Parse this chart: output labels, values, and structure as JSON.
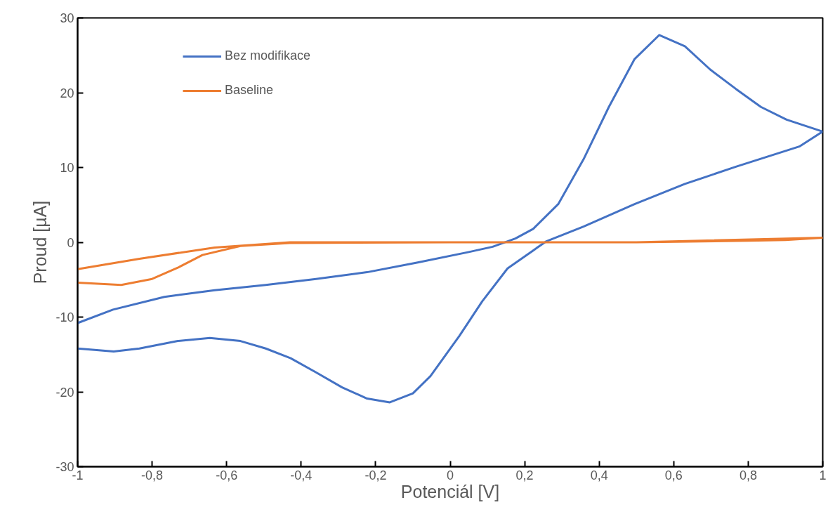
{
  "chart_data": {
    "type": "line",
    "xlabel": "Potenciál [V]",
    "ylabel": "Proud [µA]",
    "xlim": [
      -1,
      1
    ],
    "ylim": [
      -30,
      30
    ],
    "xticks": [
      {
        "value": -1,
        "label": "-1"
      },
      {
        "value": -0.8,
        "label": "-0,8"
      },
      {
        "value": -0.6,
        "label": "-0,6"
      },
      {
        "value": -0.4,
        "label": "-0,4"
      },
      {
        "value": -0.2,
        "label": "-0,2"
      },
      {
        "value": 0,
        "label": "0"
      },
      {
        "value": 0.2,
        "label": "0,2"
      },
      {
        "value": 0.4,
        "label": "0,4"
      },
      {
        "value": 0.6,
        "label": "0,6"
      },
      {
        "value": 0.8,
        "label": "0,8"
      },
      {
        "value": 1,
        "label": "1"
      }
    ],
    "yticks": [
      -30,
      -20,
      -10,
      0,
      10,
      20,
      30
    ],
    "grid": false,
    "legend": "top left",
    "line_style": "solid",
    "marker": "none",
    "series": [
      {
        "name": "Bez modifikace",
        "color": "#4472c4",
        "x": [
          -1,
          -0.905,
          -0.767,
          -0.632,
          -0.495,
          -0.36,
          -0.223,
          -0.087,
          0.05,
          0.114,
          0.175,
          0.223,
          0.29,
          0.358,
          0.426,
          0.495,
          0.561,
          0.63,
          0.698,
          0.767,
          0.834,
          0.903,
          1,
          0.937,
          0.767,
          0.63,
          0.495,
          0.358,
          0.257,
          0.154,
          0.086,
          0.025,
          -0.053,
          -0.1,
          -0.162,
          -0.223,
          -0.29,
          -0.36,
          -0.428,
          -0.495,
          -0.563,
          -0.645,
          -0.731,
          -0.834,
          -0.903,
          -1
        ],
        "values": [
          -10.8,
          -9.0,
          -7.3,
          -6.4,
          -5.7,
          -4.9,
          -4.0,
          -2.7,
          -1.3,
          -0.6,
          0.5,
          1.8,
          5.1,
          11.1,
          18.1,
          24.5,
          27.7,
          26.2,
          23.1,
          20.5,
          18.1,
          16.4,
          14.8,
          12.8,
          10.1,
          7.8,
          5.1,
          2.1,
          0.1,
          -3.5,
          -7.9,
          -12.5,
          -17.9,
          -20.2,
          -21.4,
          -20.9,
          -19.4,
          -17.4,
          -15.5,
          -14.2,
          -13.2,
          -12.8,
          -13.2,
          -14.2,
          -14.6,
          -14.2
        ]
      },
      {
        "name": "Baseline",
        "color": "#ed7d31",
        "x": [
          -1,
          -0.883,
          -0.8,
          -0.731,
          -0.665,
          -0.563,
          -0.43,
          0,
          0.5,
          0.8,
          0.9,
          1,
          0.5,
          0,
          -0.43,
          -0.632,
          -0.834,
          -1
        ],
        "values": [
          -5.4,
          -5.7,
          -4.9,
          -3.4,
          -1.7,
          -0.5,
          -0.1,
          0,
          0,
          0.2,
          0.3,
          0.6,
          0,
          0,
          0,
          -0.7,
          -2.2,
          -3.6
        ]
      }
    ]
  }
}
